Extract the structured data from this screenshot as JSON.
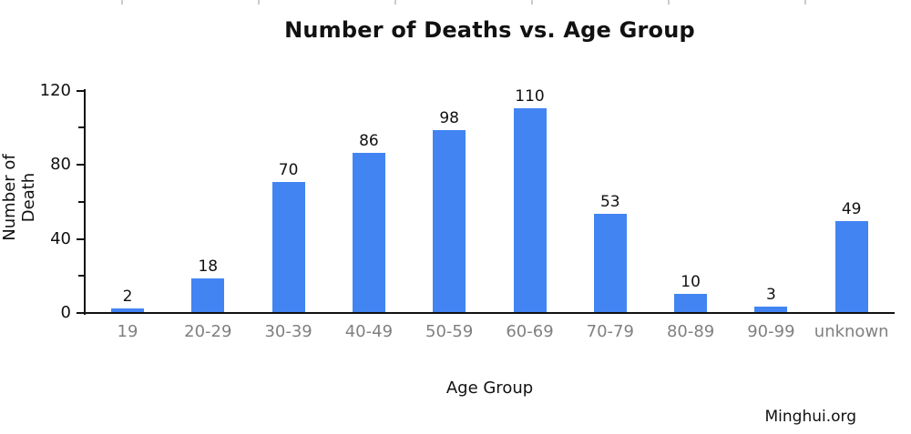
{
  "chart_data": {
    "type": "bar",
    "title": "Number of Deaths vs. Age Group",
    "xlabel": "Age Group",
    "ylabel": "Number of Death",
    "categories": [
      "19",
      "20-29",
      "30-39",
      "40-49",
      "50-59",
      "60-69",
      "70-79",
      "80-89",
      "90-99",
      "unknown"
    ],
    "values": [
      2,
      18,
      70,
      86,
      98,
      110,
      53,
      10,
      3,
      49
    ],
    "ylim": [
      0,
      120
    ],
    "ytick_step": 20,
    "ytick_labeled_values": [
      0,
      40,
      80,
      120
    ],
    "grid": false,
    "legend": "none",
    "bar_color": "#4384f3",
    "axis_color": "#111111",
    "xtick_label_color": "#808080",
    "value_label_color": "#111111"
  },
  "footer": {
    "text": "Minghui.org"
  },
  "decor": {
    "top_ruler_ticks_x": [
      133,
      283,
      433,
      583,
      733,
      883
    ],
    "tick_color": "#cccccc"
  }
}
